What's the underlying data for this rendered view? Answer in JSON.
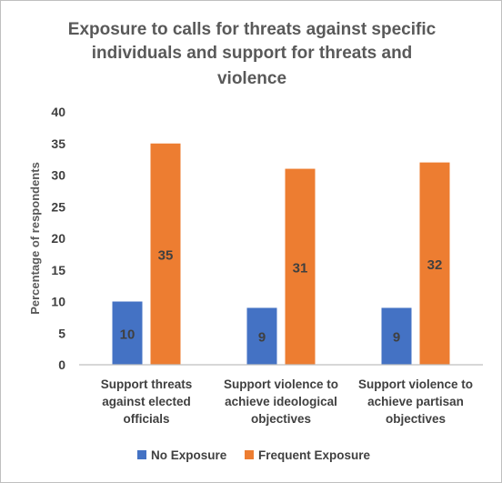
{
  "chart_data": {
    "type": "bar",
    "title": "Exposure to calls for threats against specific individuals and support for threats and violence",
    "title_lines": [
      "Exposure to calls for threats against specific",
      "individuals and support for threats and",
      "violence"
    ],
    "xlabel": "",
    "ylabel": "Percentage of respondents",
    "ylim": [
      0,
      40
    ],
    "yticks": [
      0,
      5,
      10,
      15,
      20,
      25,
      30,
      35,
      40
    ],
    "categories": [
      "Support threats against elected officials",
      "Support violence to achieve ideological objectives",
      "Support violence to achieve partisan objectives"
    ],
    "category_lines": [
      [
        "Support threats",
        "against elected",
        "officials"
      ],
      [
        "Support violence to",
        "achieve ideological",
        "objectives"
      ],
      [
        "Support violence to",
        "achieve partisan",
        "objectives"
      ]
    ],
    "series": [
      {
        "name": "No Exposure",
        "color": "#4472c4",
        "values": [
          10,
          9,
          9
        ]
      },
      {
        "name": "Frequent Exposure",
        "color": "#ed7d31",
        "values": [
          35,
          31,
          32
        ]
      }
    ],
    "grid": false,
    "legend_position": "bottom"
  }
}
